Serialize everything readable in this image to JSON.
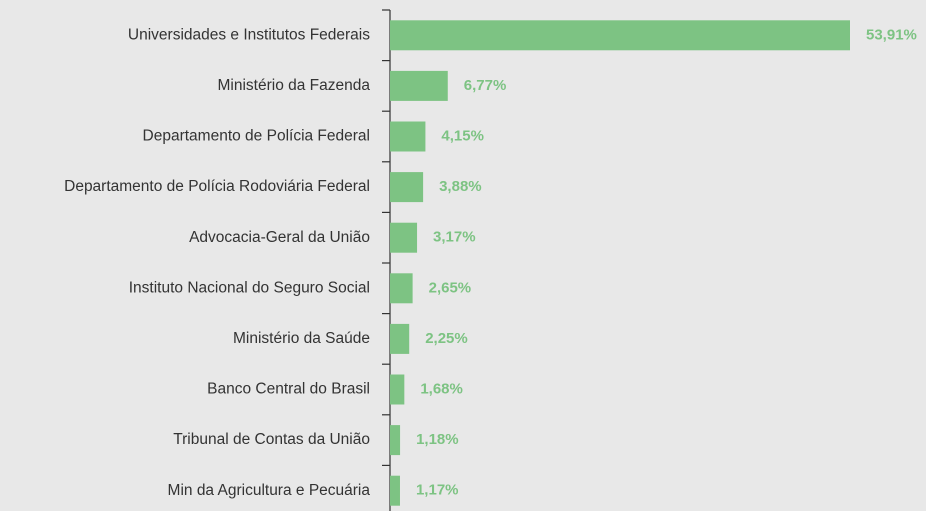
{
  "chart_data": {
    "type": "barh",
    "categories": [
      "Universidades e Institutos Federais",
      "Ministério da Fazenda",
      "Departamento de Polícia Federal",
      "Departamento de Polícia Rodoviária Federal",
      "Advocacia-Geral da União",
      "Instituto Nacional do Seguro Social",
      "Ministério da Saúde",
      "Banco Central do Brasil",
      "Tribunal de Contas da União",
      "Min da Agricultura e Pecuária"
    ],
    "values": [
      53.91,
      6.77,
      4.15,
      3.88,
      3.17,
      2.65,
      2.25,
      1.68,
      1.18,
      1.17
    ],
    "value_labels": [
      "53,91%",
      "6,77%",
      "4,15%",
      "3,88%",
      "3,17%",
      "2,65%",
      "2,25%",
      "1,68%",
      "1,18%",
      "1,17%"
    ],
    "color": "#7dc383"
  }
}
